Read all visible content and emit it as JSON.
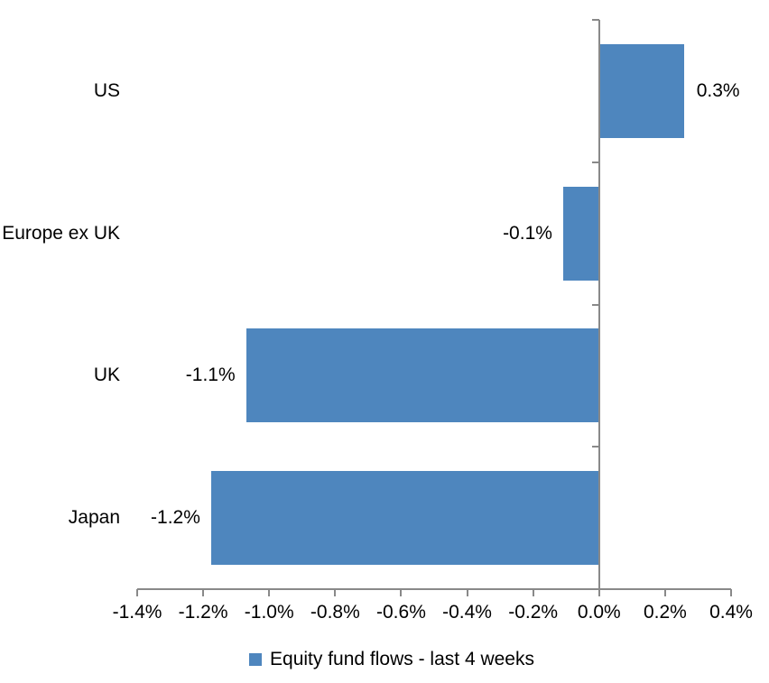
{
  "chart_data": {
    "type": "bar",
    "orientation": "horizontal",
    "title": "",
    "xlabel": "",
    "ylabel": "",
    "categories": [
      "US",
      "Europe ex UK",
      "UK",
      "Japan"
    ],
    "values": [
      0.3,
      -0.1,
      -1.1,
      -1.2
    ],
    "bar_plot_values": [
      0.257,
      -0.109,
      -1.07,
      -1.176
    ],
    "data_labels": [
      "0.3%",
      "-0.1%",
      "-1.1%",
      "-1.2%"
    ],
    "data_label_position": "outside-end",
    "x_tick_values": [
      -1.4,
      -1.2,
      -1.0,
      -0.8,
      -0.6,
      -0.4,
      -0.2,
      0.0,
      0.2,
      0.4
    ],
    "x_tick_labels": [
      "-1.4%",
      "-1.2%",
      "-1.0%",
      "-0.8%",
      "-0.6%",
      "-0.4%",
      "-0.2%",
      "0.0%",
      "0.2%",
      "0.4%"
    ],
    "xlim": [
      -1.4,
      0.4
    ],
    "grid": "off",
    "legend": {
      "label": "Equity fund flows - last 4 weeks",
      "position": "bottom",
      "marker": "square"
    }
  },
  "colors": {
    "bar": "#4E86BE",
    "axis": "#898989",
    "text": "#000000",
    "background": "#FFFFFF"
  }
}
